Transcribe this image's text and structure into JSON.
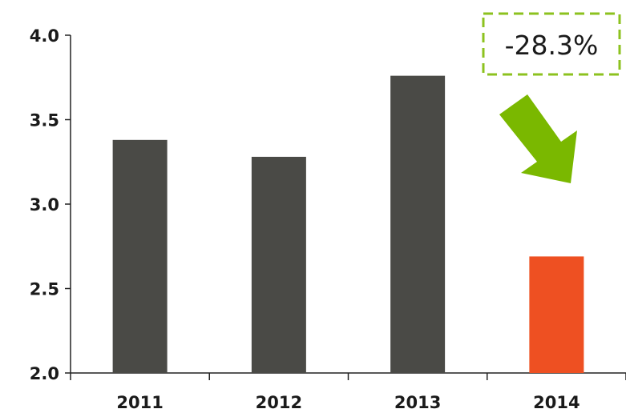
{
  "chart_data": {
    "type": "bar",
    "categories": [
      "2011",
      "2012",
      "2013",
      "2014"
    ],
    "values": [
      3.38,
      3.28,
      3.76,
      2.69
    ],
    "ylim": [
      2.0,
      4.0
    ],
    "yticks": [
      "2.0",
      "2.5",
      "3.0",
      "3.5",
      "4.0"
    ],
    "bar_colors": [
      "#4a4a46",
      "#4a4a46",
      "#4a4a46",
      "#ee5022"
    ],
    "title": "",
    "xlabel": "",
    "ylabel": "",
    "grid": false,
    "annotation": {
      "text": "-28.3%",
      "box_color": "#8cc21f",
      "arrow_color": "#7ab800"
    }
  }
}
